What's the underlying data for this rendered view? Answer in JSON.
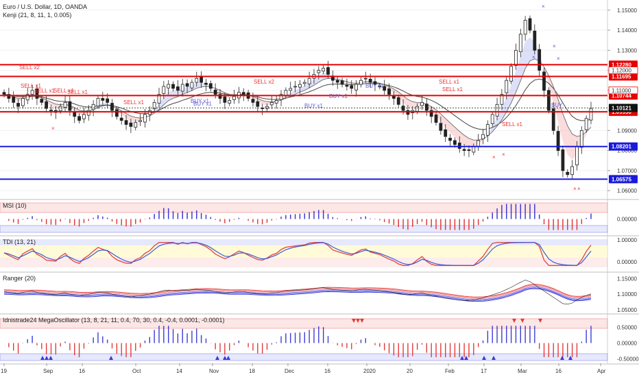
{
  "chart_data": {
    "type": "candlestick",
    "title": "Euro / U.S. Dollar, 1D, OANDA",
    "indicator": "Kenji (21, 8, 11, 1, 0.005)",
    "x_axis_labels": [
      "19",
      "Sep",
      "16",
      "Oct",
      "14",
      "Nov",
      "18",
      "Dec",
      "16",
      "2020",
      "20",
      "Feb",
      "17",
      "Mar",
      "16",
      "Apr"
    ],
    "price_axis_ticks": [
      "1.15000",
      "1.14000",
      "1.13000",
      "1.12000",
      "1.11000",
      "1.10000",
      "1.09000",
      "1.08000",
      "1.07000",
      "1.06000"
    ],
    "price_range": [
      1.058,
      1.153
    ],
    "current_price": "1.10121",
    "levels": [
      {
        "label": "1.12280",
        "value": 1.1228,
        "color": "#e60000"
      },
      {
        "label": "1.11695",
        "value": 1.11695,
        "color": "#e60000"
      },
      {
        "label": "1.10744",
        "value": 1.10744,
        "color": "#e60000"
      },
      {
        "label": "1.09930",
        "value": 1.0993,
        "color": "#e60000"
      },
      {
        "label": "1.08201",
        "value": 1.08201,
        "color": "#1a1adb"
      },
      {
        "label": "1.06575",
        "value": 1.06575,
        "color": "#1a1adb"
      }
    ],
    "extra_price_labels": [
      "1.12000",
      "1.11000"
    ],
    "signals": [
      {
        "text": "SELL x2",
        "color": "#e33"
      },
      {
        "text": "SELL x1",
        "color": "#e33"
      },
      {
        "text": "SELL x1",
        "color": "#e33"
      },
      {
        "text": "SELL x1",
        "color": "#e33"
      },
      {
        "text": "SELL x1",
        "color": "#e33"
      },
      {
        "text": "SELL x2",
        "color": "#e33"
      },
      {
        "text": "SELL x1",
        "color": "#e33"
      },
      {
        "text": "SELL x1",
        "color": "#e33"
      },
      {
        "text": "SELL x1",
        "color": "#e33"
      },
      {
        "text": "SELL x1",
        "color": "#e33"
      },
      {
        "text": "BUY x1",
        "color": "#5b5bd6"
      },
      {
        "text": "BUY x1",
        "color": "#5b5bd6"
      },
      {
        "text": "BUY x1",
        "color": "#5b5bd6"
      },
      {
        "text": "BUY x1",
        "color": "#5b5bd6"
      },
      {
        "text": "BUY x1",
        "color": "#5b5bd6"
      },
      {
        "text": "BUY",
        "color": "#5b5bd6"
      }
    ],
    "close": [
      1.108,
      1.106,
      1.104,
      1.102,
      1.106,
      1.108,
      1.11,
      1.106,
      1.104,
      1.101,
      1.1,
      1.099,
      1.102,
      1.104,
      1.1,
      1.097,
      1.095,
      1.098,
      1.1,
      1.103,
      1.106,
      1.105,
      1.104,
      1.1,
      1.097,
      1.095,
      1.093,
      1.092,
      1.094,
      1.095,
      1.098,
      1.1,
      1.104,
      1.108,
      1.112,
      1.113,
      1.111,
      1.11,
      1.113,
      1.112,
      1.114,
      1.116,
      1.114,
      1.113,
      1.111,
      1.108,
      1.106,
      1.104,
      1.105,
      1.107,
      1.109,
      1.108,
      1.106,
      1.104,
      1.102,
      1.101,
      1.102,
      1.104,
      1.105,
      1.108,
      1.11,
      1.111,
      1.112,
      1.113,
      1.114,
      1.116,
      1.118,
      1.12,
      1.121,
      1.118,
      1.115,
      1.114,
      1.113,
      1.112,
      1.111,
      1.113,
      1.115,
      1.116,
      1.114,
      1.113,
      1.112,
      1.11,
      1.108,
      1.106,
      1.103,
      1.1,
      1.098,
      1.1,
      1.102,
      1.104,
      1.1,
      1.097,
      1.094,
      1.09,
      1.087,
      1.085,
      1.083,
      1.081,
      1.08,
      1.08,
      1.082,
      1.085,
      1.088,
      1.093,
      1.098,
      1.103,
      1.108,
      1.115,
      1.122,
      1.13,
      1.138,
      1.145,
      1.14,
      1.13,
      1.12,
      1.11,
      1.1,
      1.09,
      1.08,
      1.07,
      1.068,
      1.072,
      1.082,
      1.09,
      1.096,
      1.101
    ],
    "panels": [
      {
        "name": "MSI (10)",
        "axis": [
          "0.00000"
        ]
      },
      {
        "name": "TDI (13, 21)",
        "axis": [
          "1.00000",
          "0.00000"
        ]
      },
      {
        "name": "Ranger (20)",
        "axis": [
          "1.15000",
          "1.10000",
          "1.05000"
        ]
      },
      {
        "name": "Idnistrade24 MegaOscillator (13, 8, 21, 11, 0.4, 70, 30, 0.4, -0.4, 0.0001, -0.0001)",
        "axis": [
          "0.50000",
          "0.00000",
          "-0.50000"
        ]
      }
    ]
  }
}
